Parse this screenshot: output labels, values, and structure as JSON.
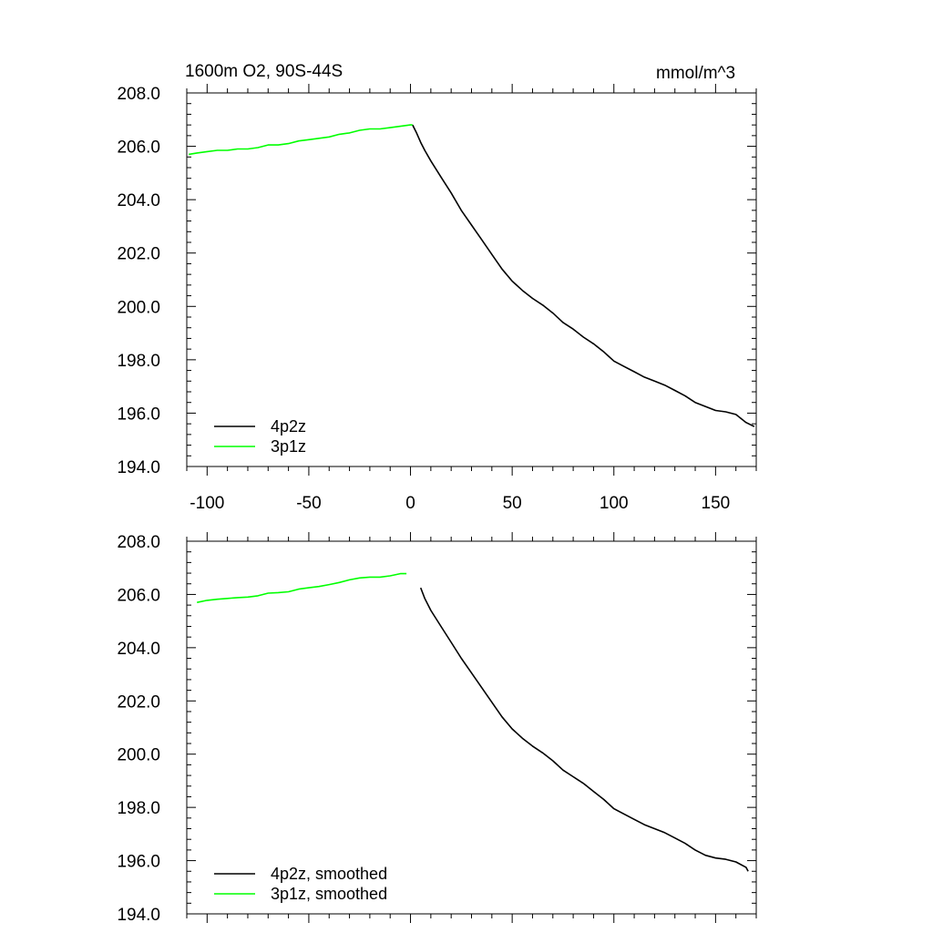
{
  "chart_data": [
    {
      "type": "line",
      "title": "1600m O2, 90S-44S",
      "units": "mmol/m^3",
      "xlabel": "",
      "ylabel": "",
      "xlim": [
        -110,
        170
      ],
      "ylim": [
        194.0,
        208.0
      ],
      "yticks": [
        194.0,
        196.0,
        198.0,
        200.0,
        202.0,
        204.0,
        206.0,
        208.0
      ],
      "ytick_labels": [
        "194.0",
        "196.0",
        "198.0",
        "200.0",
        "202.0",
        "204.0",
        "206.0",
        "208.0"
      ],
      "xticks": [
        -100,
        -50,
        0,
        50,
        100,
        150
      ],
      "xtick_labels": [
        "-100",
        "-50",
        "0",
        "50",
        "100",
        "150"
      ],
      "legend_position": "bottom-left",
      "grid": false,
      "series": [
        {
          "name": "4p2z",
          "color": "#000000",
          "x": [
            1,
            3,
            5,
            7,
            10,
            15,
            20,
            25,
            30,
            35,
            40,
            45,
            50,
            55,
            60,
            65,
            70,
            75,
            80,
            85,
            90,
            95,
            100,
            105,
            110,
            115,
            120,
            125,
            130,
            135,
            140,
            145,
            150,
            155,
            160,
            165,
            169
          ],
          "y": [
            206.8,
            206.5,
            206.15,
            205.85,
            205.45,
            204.85,
            204.25,
            203.6,
            203.05,
            202.5,
            201.95,
            201.4,
            200.95,
            200.6,
            200.3,
            200.05,
            199.75,
            199.4,
            199.15,
            198.85,
            198.6,
            198.3,
            197.95,
            197.75,
            197.55,
            197.35,
            197.2,
            197.05,
            196.85,
            196.65,
            196.4,
            196.25,
            196.1,
            196.05,
            195.95,
            195.65,
            195.5
          ]
        },
        {
          "name": "3p1z",
          "color": "#00ff00",
          "x": [
            -109,
            -105,
            -100,
            -95,
            -90,
            -85,
            -80,
            -75,
            -70,
            -65,
            -60,
            -55,
            -50,
            -45,
            -40,
            -35,
            -30,
            -25,
            -20,
            -15,
            -10,
            -5,
            0,
            1
          ],
          "y": [
            205.7,
            205.75,
            205.8,
            205.85,
            205.85,
            205.9,
            205.9,
            205.95,
            206.05,
            206.05,
            206.1,
            206.2,
            206.25,
            206.3,
            206.35,
            206.45,
            206.5,
            206.6,
            206.65,
            206.65,
            206.7,
            206.75,
            206.8,
            206.8
          ]
        }
      ]
    },
    {
      "type": "line",
      "title": "",
      "xlabel": "",
      "ylabel": "",
      "xlim": [
        -110,
        170
      ],
      "ylim": [
        194.0,
        208.0
      ],
      "yticks": [
        194.0,
        196.0,
        198.0,
        200.0,
        202.0,
        204.0,
        206.0,
        208.0
      ],
      "ytick_labels": [
        "194.0",
        "196.0",
        "198.0",
        "200.0",
        "202.0",
        "204.0",
        "206.0",
        "208.0"
      ],
      "xticks": [
        -100,
        -50,
        0,
        50,
        100,
        150
      ],
      "legend_position": "bottom-left",
      "grid": false,
      "series": [
        {
          "name": "4p2z, smoothed",
          "color": "#000000",
          "x": [
            5,
            7,
            10,
            15,
            20,
            25,
            30,
            35,
            40,
            45,
            50,
            55,
            60,
            65,
            70,
            75,
            80,
            85,
            90,
            95,
            100,
            105,
            110,
            115,
            120,
            125,
            130,
            135,
            140,
            145,
            150,
            155,
            160,
            165,
            166
          ],
          "y": [
            206.25,
            205.85,
            205.4,
            204.8,
            204.2,
            203.6,
            203.05,
            202.5,
            201.95,
            201.4,
            200.95,
            200.6,
            200.3,
            200.05,
            199.75,
            199.4,
            199.15,
            198.9,
            198.6,
            198.3,
            197.95,
            197.75,
            197.55,
            197.35,
            197.2,
            197.05,
            196.85,
            196.65,
            196.4,
            196.2,
            196.1,
            196.05,
            195.95,
            195.75,
            195.6
          ]
        },
        {
          "name": "3p1z, smoothed",
          "color": "#00ff00",
          "x": [
            -105,
            -100,
            -95,
            -90,
            -85,
            -80,
            -75,
            -70,
            -65,
            -60,
            -55,
            -50,
            -45,
            -40,
            -35,
            -30,
            -25,
            -20,
            -15,
            -10,
            -5,
            -2
          ],
          "y": [
            205.7,
            205.78,
            205.82,
            205.85,
            205.88,
            205.9,
            205.95,
            206.05,
            206.07,
            206.1,
            206.2,
            206.25,
            206.3,
            206.37,
            206.45,
            206.55,
            206.62,
            206.65,
            206.65,
            206.7,
            206.78,
            206.78
          ]
        }
      ]
    }
  ]
}
